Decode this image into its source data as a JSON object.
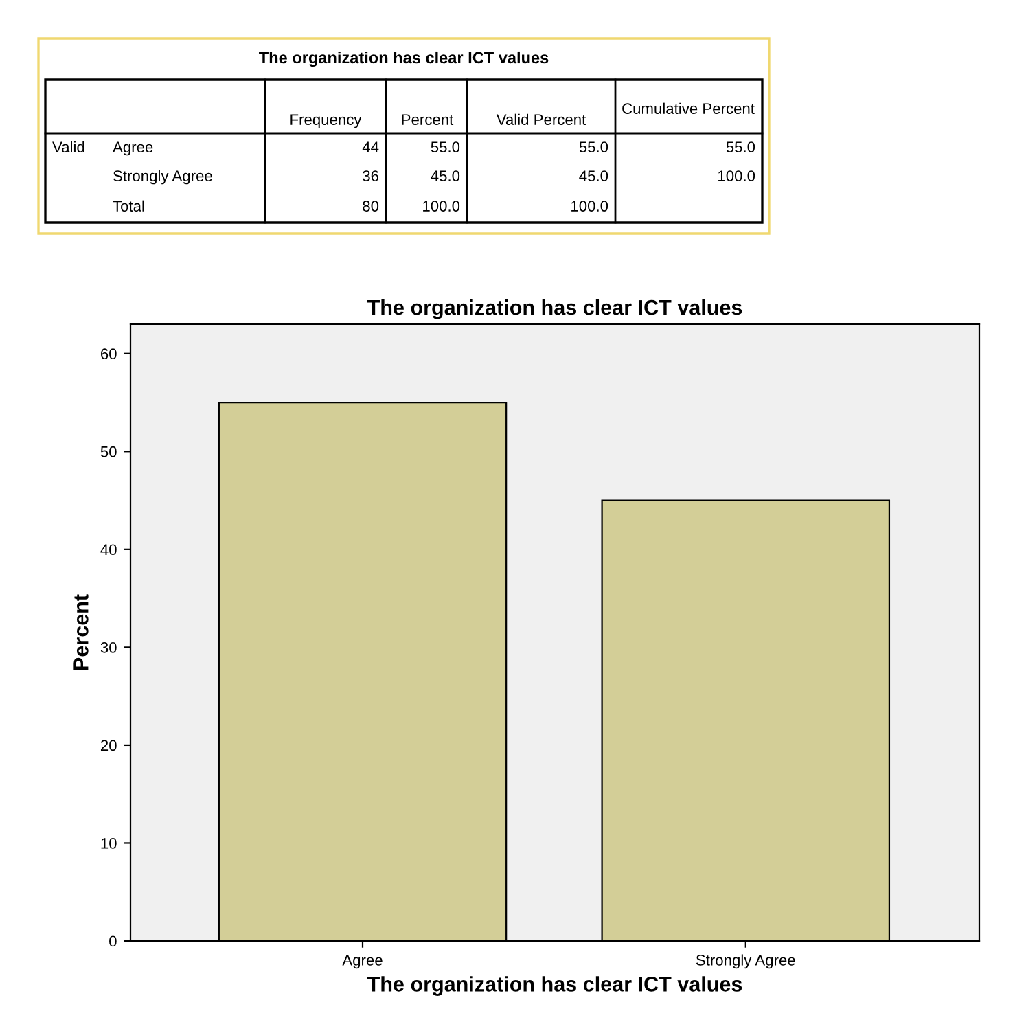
{
  "chart_data": {
    "type": "bar",
    "title": "The organization has clear ICT values",
    "xlabel": "The organization has clear ICT values",
    "ylabel": "Percent",
    "categories": [
      "Agree",
      "Strongly Agree"
    ],
    "values": [
      55.0,
      45.0
    ],
    "color": "#d3ce97",
    "ylim": [
      0,
      63
    ],
    "yticks": [
      0,
      10,
      20,
      30,
      40,
      50,
      60
    ],
    "grid": false,
    "annotations": [
      "The organization has clear ICT values",
      "Frequency",
      "Percent",
      "Valid Percent",
      "Cumulative Percent",
      "Valid",
      "Agree",
      "44",
      "55.0",
      "55.0",
      "55.0",
      "Strongly Agree",
      "36",
      "45.0",
      "45.0",
      "100.0",
      "Total",
      "80",
      "100.0",
      "100.0"
    ]
  }
}
